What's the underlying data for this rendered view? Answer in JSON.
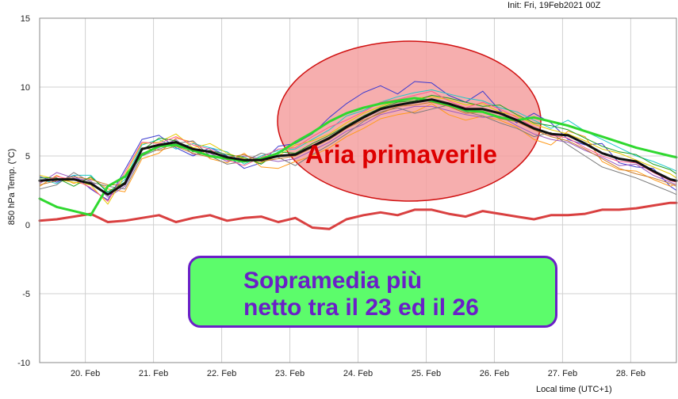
{
  "header": {
    "init_text": "Init: Fri, 19Feb2021 00Z"
  },
  "axes": {
    "ylabel": "850 hPa Temp. (°C)",
    "xlabel": "Local time (UTC+1)"
  },
  "annotations": {
    "ellipse_text": "Aria primaverile",
    "box_text": "Sopramedia più\nnetto tra il 23 ed il 26"
  },
  "colors": {
    "ellipse_fill": "#f4a0a0",
    "ellipse_stroke": "#d01010",
    "box_fill": "#5cfc6b",
    "box_border": "#6a1fc7",
    "mean_line": "#111111",
    "control_line": "#2fd82f",
    "climate_line": "#d94040"
  },
  "chart_data": {
    "type": "line",
    "title": "",
    "xlabel": "Local time (UTC+1)",
    "ylabel": "850 hPa Temp. (°C)",
    "x_ticks": [
      "20. Feb",
      "21. Feb",
      "22. Feb",
      "23. Feb",
      "24. Feb",
      "25. Feb",
      "26. Feb",
      "27. Feb",
      "28. Feb"
    ],
    "ylim": [
      -10,
      15
    ],
    "y_ticks": [
      -10,
      -5,
      0,
      5,
      10,
      15
    ],
    "xlim_days": [
      19.33,
      28.67
    ],
    "grid": true,
    "x": [
      19.33,
      19.58,
      19.83,
      20.08,
      20.33,
      20.58,
      20.83,
      21.08,
      21.33,
      21.58,
      21.83,
      22.08,
      22.33,
      22.58,
      22.83,
      23.08,
      23.33,
      23.58,
      23.83,
      24.08,
      24.33,
      24.58,
      24.83,
      25.08,
      25.33,
      25.58,
      25.83,
      26.08,
      26.33,
      26.58,
      26.83,
      27.08,
      27.33,
      27.58,
      27.83,
      28.08,
      28.33,
      28.58,
      28.67
    ],
    "series": [
      {
        "role": "ensemble_mean",
        "values": [
          3.2,
          3.3,
          3.3,
          3.0,
          2.2,
          3.0,
          5.5,
          5.8,
          6.0,
          5.5,
          5.3,
          4.9,
          4.7,
          4.7,
          5.0,
          5.1,
          5.7,
          6.3,
          7.1,
          7.8,
          8.4,
          8.7,
          8.9,
          9.1,
          8.8,
          8.4,
          8.4,
          8.1,
          7.6,
          7.0,
          6.6,
          6.5,
          5.9,
          5.2,
          4.8,
          4.6,
          3.9,
          3.3,
          3.2
        ]
      },
      {
        "role": "control",
        "values": [
          1.9,
          1.3,
          1.0,
          0.7,
          2.8,
          3.5,
          5.1,
          5.7,
          5.8,
          5.4,
          5.0,
          4.8,
          4.6,
          4.8,
          5.2,
          6.0,
          6.7,
          7.5,
          8.1,
          8.5,
          8.8,
          9.0,
          9.2,
          9.0,
          8.7,
          8.3,
          8.2,
          7.8,
          7.6,
          7.8,
          7.5,
          7.2,
          6.8,
          6.4,
          6.0,
          5.6,
          5.3,
          5.0,
          4.9
        ]
      },
      {
        "role": "climate",
        "values": [
          0.3,
          0.4,
          0.6,
          0.8,
          0.2,
          0.3,
          0.5,
          0.7,
          0.2,
          0.5,
          0.7,
          0.3,
          0.5,
          0.6,
          0.2,
          0.5,
          -0.2,
          -0.3,
          0.4,
          0.7,
          0.9,
          0.7,
          1.1,
          1.1,
          0.8,
          0.6,
          1.0,
          0.8,
          0.6,
          0.4,
          0.7,
          0.7,
          0.8,
          1.1,
          1.1,
          1.2,
          1.4,
          1.6,
          1.6
        ]
      },
      {
        "role": "member",
        "values": [
          3.5,
          3.1,
          3.6,
          2.6,
          1.8,
          4.0,
          6.2,
          6.5,
          5.6,
          5.0,
          5.6,
          5.0,
          4.1,
          4.5,
          5.7,
          5.9,
          6.6,
          7.8,
          8.8,
          9.6,
          10.1,
          9.5,
          10.4,
          10.3,
          9.4,
          8.9,
          9.7,
          8.3,
          7.4,
          8.1,
          7.4,
          6.2,
          5.8,
          5.9,
          4.5,
          4.2,
          4.1,
          2.8,
          2.5
        ]
      },
      {
        "role": "member",
        "values": [
          2.8,
          3.6,
          3.0,
          3.4,
          2.6,
          2.4,
          4.8,
          5.2,
          6.3,
          6.0,
          4.8,
          4.5,
          5.2,
          4.2,
          4.1,
          4.6,
          5.0,
          5.6,
          6.4,
          7.0,
          7.7,
          8.0,
          8.2,
          8.8,
          8.0,
          7.6,
          7.9,
          7.6,
          7.1,
          6.2,
          5.8,
          6.8,
          6.4,
          4.6,
          4.0,
          3.9,
          3.3,
          2.8,
          3.0
        ]
      },
      {
        "role": "member",
        "values": [
          3.3,
          3.0,
          3.6,
          3.6,
          2.3,
          3.3,
          5.8,
          6.2,
          5.5,
          5.9,
          5.6,
          5.3,
          4.4,
          5.0,
          5.4,
          5.5,
          6.2,
          6.9,
          7.9,
          8.3,
          8.9,
          9.3,
          9.6,
          9.8,
          9.5,
          9.2,
          9.0,
          8.5,
          8.2,
          7.6,
          7.0,
          7.6,
          6.8,
          6.2,
          5.6,
          5.0,
          4.6,
          4.1,
          3.9
        ]
      },
      {
        "role": "member",
        "values": [
          3.0,
          3.8,
          3.4,
          3.2,
          2.0,
          2.8,
          5.2,
          5.6,
          6.2,
          5.1,
          5.2,
          4.6,
          5.0,
          4.8,
          4.6,
          4.8,
          5.4,
          6.0,
          6.8,
          7.3,
          8.0,
          8.3,
          8.6,
          8.6,
          8.3,
          8.0,
          7.8,
          7.9,
          7.2,
          6.6,
          6.2,
          6.0,
          5.4,
          4.9,
          4.3,
          4.4,
          3.6,
          3.1,
          2.9
        ]
      },
      {
        "role": "member",
        "values": [
          3.6,
          3.3,
          3.1,
          2.9,
          1.5,
          3.6,
          5.9,
          6.0,
          6.6,
          5.6,
          5.9,
          5.2,
          4.8,
          4.5,
          5.0,
          5.8,
          6.1,
          6.6,
          7.4,
          8.1,
          8.6,
          9.0,
          9.2,
          9.3,
          9.1,
          8.7,
          8.8,
          8.2,
          7.9,
          7.3,
          6.9,
          6.6,
          6.1,
          5.5,
          5.2,
          4.7,
          4.2,
          3.7,
          3.4
        ]
      },
      {
        "role": "member",
        "values": [
          2.6,
          2.9,
          3.8,
          3.1,
          2.8,
          2.6,
          5.0,
          5.5,
          5.9,
          6.1,
          5.0,
          4.4,
          4.6,
          5.2,
          4.9,
          4.3,
          5.1,
          5.8,
          6.6,
          7.5,
          8.2,
          8.5,
          8.1,
          8.4,
          8.7,
          8.2,
          7.9,
          7.4,
          7.0,
          6.4,
          6.7,
          5.8,
          5.0,
          4.2,
          3.8,
          3.4,
          2.9,
          2.4,
          2.2
        ]
      },
      {
        "role": "member",
        "values": [
          3.4,
          3.4,
          2.8,
          3.5,
          2.4,
          3.1,
          5.4,
          6.3,
          6.1,
          5.3,
          5.4,
          5.1,
          4.9,
          4.4,
          5.3,
          5.2,
          5.9,
          6.5,
          7.2,
          7.9,
          8.5,
          8.9,
          9.0,
          9.4,
          9.2,
          8.9,
          8.6,
          8.7,
          8.0,
          7.4,
          7.2,
          6.9,
          6.3,
          5.7,
          5.3,
          5.1,
          4.4,
          4.0,
          3.7
        ]
      },
      {
        "role": "member",
        "values": [
          3.1,
          3.5,
          3.3,
          2.7,
          1.7,
          3.8,
          6.0,
          5.9,
          6.4,
          5.8,
          5.5,
          4.7,
          4.3,
          4.9,
          5.5,
          5.6,
          6.4,
          7.1,
          7.6,
          8.2,
          8.9,
          9.1,
          9.4,
          9.7,
          9.0,
          8.5,
          8.9,
          8.4,
          7.8,
          7.1,
          6.5,
          6.3,
          5.6,
          5.0,
          4.6,
          4.5,
          3.8,
          3.2,
          3.1
        ]
      },
      {
        "role": "member",
        "values": [
          2.9,
          3.2,
          3.5,
          3.3,
          2.9,
          2.9,
          5.6,
          5.4,
          5.7,
          5.2,
          4.9,
          4.9,
          5.1,
          4.6,
          4.8,
          5.0,
          5.6,
          6.2,
          7.0,
          7.6,
          8.1,
          8.6,
          8.7,
          8.9,
          8.6,
          8.1,
          8.2,
          7.7,
          7.5,
          6.9,
          6.4,
          6.1,
          5.5,
          4.8,
          4.1,
          3.7,
          3.4,
          3.0,
          2.8
        ]
      }
    ]
  }
}
